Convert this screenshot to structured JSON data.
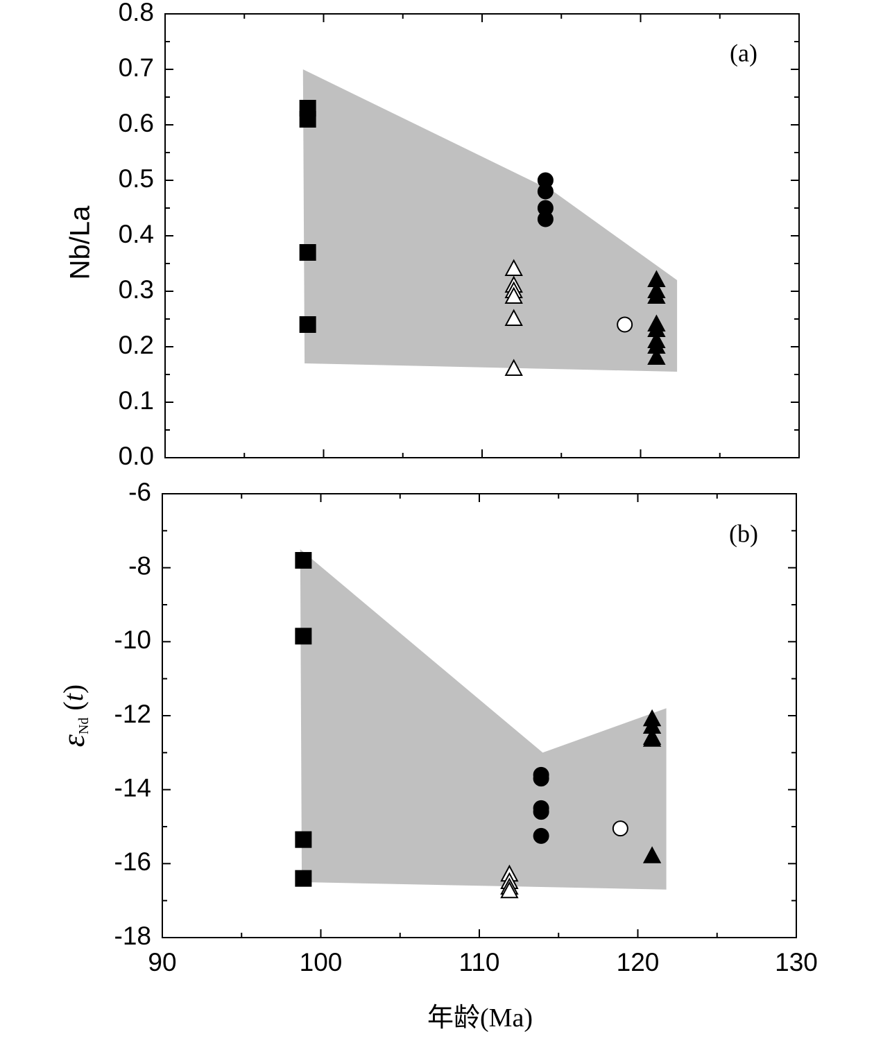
{
  "chart_data": [
    {
      "type": "scatter",
      "panel_label": "(a)",
      "xlabel": "年龄(Ma)",
      "ylabel": "Nb/La",
      "xlim": [
        90,
        130
      ],
      "ylim": [
        0.0,
        0.8
      ],
      "yticks": [
        "0.0",
        "0.1",
        "0.2",
        "0.3",
        "0.4",
        "0.5",
        "0.6",
        "0.7",
        "0.8"
      ],
      "yticks_values": [
        0.0,
        0.1,
        0.2,
        0.3,
        0.4,
        0.5,
        0.6,
        0.7,
        0.8
      ],
      "shaded_region": [
        [
          98.7,
          0.7
        ],
        [
          114.5,
          0.48
        ],
        [
          122.3,
          0.32
        ],
        [
          122.3,
          0.155
        ],
        [
          98.8,
          0.17
        ]
      ],
      "series": [
        {
          "name": "filled-square",
          "marker": "square",
          "filled": true,
          "x": [
            99,
            99,
            99,
            99
          ],
          "y": [
            0.63,
            0.61,
            0.37,
            0.24
          ]
        },
        {
          "name": "filled-circle",
          "marker": "circle",
          "filled": true,
          "x": [
            114,
            114,
            114,
            114
          ],
          "y": [
            0.5,
            0.48,
            0.45,
            0.43
          ]
        },
        {
          "name": "open-triangle",
          "marker": "triangle",
          "filled": false,
          "x": [
            112,
            112,
            112,
            112,
            112,
            112
          ],
          "y": [
            0.34,
            0.31,
            0.3,
            0.29,
            0.25,
            0.16
          ]
        },
        {
          "name": "open-circle",
          "marker": "circle",
          "filled": false,
          "x": [
            119
          ],
          "y": [
            0.24
          ]
        },
        {
          "name": "filled-triangle",
          "marker": "triangle",
          "filled": true,
          "x": [
            121,
            121,
            121,
            121,
            121,
            121,
            121,
            121
          ],
          "y": [
            0.32,
            0.3,
            0.29,
            0.24,
            0.23,
            0.21,
            0.2,
            0.18
          ]
        }
      ]
    },
    {
      "type": "scatter",
      "panel_label": "(b)",
      "xlabel": "年龄(Ma)",
      "ylabel": "εNd(t)",
      "xlim": [
        90,
        130
      ],
      "ylim": [
        -18,
        -6
      ],
      "xticks": [
        "90",
        "100",
        "110",
        "120",
        "130"
      ],
      "xticks_values": [
        90,
        100,
        110,
        120,
        130
      ],
      "yticks": [
        "-18",
        "-16",
        "-14",
        "-12",
        "-10",
        "-8",
        "-6"
      ],
      "yticks_values": [
        -18,
        -16,
        -14,
        -12,
        -10,
        -8,
        -6
      ],
      "shaded_region": [
        [
          98.7,
          -7.5
        ],
        [
          114,
          -13.0
        ],
        [
          121.8,
          -11.8
        ],
        [
          121.8,
          -16.7
        ],
        [
          98.8,
          -16.5
        ]
      ],
      "series": [
        {
          "name": "filled-square",
          "marker": "square",
          "filled": true,
          "x": [
            98.9,
            98.9,
            98.9,
            98.9
          ],
          "y": [
            -7.8,
            -9.85,
            -15.35,
            -16.4
          ]
        },
        {
          "name": "filled-circle",
          "marker": "circle",
          "filled": true,
          "x": [
            113.9,
            113.9,
            113.9,
            113.9,
            113.9
          ],
          "y": [
            -13.6,
            -13.7,
            -14.5,
            -14.6,
            -15.25
          ]
        },
        {
          "name": "open-triangle",
          "marker": "triangle",
          "filled": false,
          "x": [
            111.9,
            111.9,
            111.9,
            111.9
          ],
          "y": [
            -16.3,
            -16.5,
            -16.65,
            -16.75
          ]
        },
        {
          "name": "open-circle",
          "marker": "circle",
          "filled": false,
          "x": [
            118.9
          ],
          "y": [
            -15.05
          ]
        },
        {
          "name": "filled-triangle",
          "marker": "triangle",
          "filled": true,
          "x": [
            120.9,
            120.9,
            120.9,
            120.9,
            120.9
          ],
          "y": [
            -12.1,
            -12.3,
            -12.6,
            -12.65,
            -15.8
          ]
        }
      ]
    }
  ],
  "colors": {
    "shade": "#c0c0c0",
    "marker": "#000000",
    "axis": "#000000"
  }
}
